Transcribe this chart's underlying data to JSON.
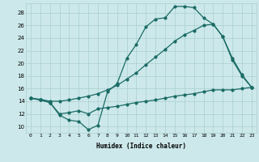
{
  "xlabel": "Humidex (Indice chaleur)",
  "background_color": "#cce8ea",
  "grid_color": "#aacfcf",
  "line_color": "#1a6b65",
  "xlim": [
    -0.5,
    23.5
  ],
  "ylim": [
    9.0,
    29.5
  ],
  "xtick_labels": [
    "0",
    "1",
    "2",
    "3",
    "4",
    "5",
    "6",
    "7",
    "8",
    "9",
    "10",
    "11",
    "12",
    "13",
    "14",
    "15",
    "16",
    "17",
    "18",
    "19",
    "20",
    "21",
    "22",
    "23"
  ],
  "ytick_vals": [
    10,
    12,
    14,
    16,
    18,
    20,
    22,
    24,
    26,
    28
  ],
  "curve1_x": [
    0,
    1,
    2,
    3,
    4,
    5,
    6,
    7,
    8,
    9,
    10,
    11,
    12,
    13,
    14,
    15,
    16,
    17,
    18,
    19,
    20,
    21,
    22,
    23
  ],
  "curve1_y": [
    14.5,
    14.2,
    13.8,
    11.8,
    11.0,
    10.8,
    9.5,
    10.2,
    15.5,
    16.8,
    20.8,
    23.0,
    25.8,
    27.0,
    27.2,
    29.0,
    29.0,
    28.8,
    27.2,
    26.2,
    24.2,
    20.8,
    18.2,
    16.2
  ],
  "curve2_x": [
    0,
    1,
    2,
    3,
    4,
    5,
    6,
    7,
    8,
    9,
    10,
    11,
    12,
    13,
    14,
    15,
    16,
    17,
    18,
    19,
    20,
    21,
    22,
    23
  ],
  "curve2_y": [
    14.5,
    14.3,
    14.0,
    14.0,
    14.2,
    14.5,
    14.8,
    15.2,
    15.8,
    16.5,
    17.5,
    18.5,
    19.8,
    21.0,
    22.2,
    23.5,
    24.5,
    25.2,
    26.0,
    26.2,
    24.2,
    20.5,
    18.0,
    16.2
  ],
  "curve3_x": [
    0,
    1,
    2,
    3,
    4,
    5,
    6,
    7,
    8,
    9,
    10,
    11,
    12,
    13,
    14,
    15,
    16,
    17,
    18,
    19,
    20,
    21,
    22,
    23
  ],
  "curve3_y": [
    14.5,
    14.2,
    13.8,
    12.0,
    12.2,
    12.5,
    12.0,
    12.8,
    13.0,
    13.2,
    13.5,
    13.8,
    14.0,
    14.2,
    14.5,
    14.8,
    15.0,
    15.2,
    15.5,
    15.8,
    15.8,
    15.8,
    16.0,
    16.2
  ]
}
